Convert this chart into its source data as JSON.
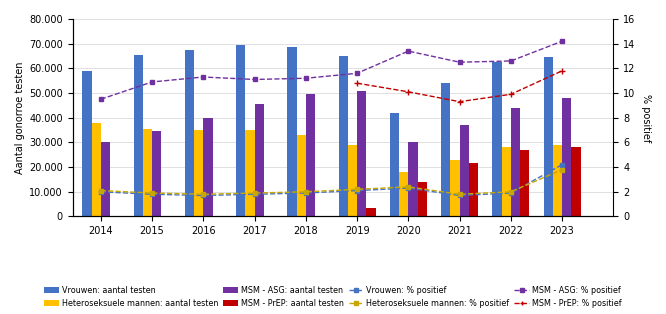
{
  "years": [
    2014,
    2015,
    2016,
    2017,
    2018,
    2019,
    2020,
    2021,
    2022,
    2023
  ],
  "vrouwen_testen": [
    59000,
    65500,
    67500,
    69500,
    68500,
    65000,
    42000,
    54000,
    62500,
    64500
  ],
  "het_mannen_testen": [
    38000,
    35500,
    35000,
    35000,
    33000,
    29000,
    18000,
    23000,
    28000,
    29000
  ],
  "msm_asg_testen": [
    30000,
    34500,
    40000,
    45500,
    49500,
    51000,
    30000,
    37000,
    44000,
    48000
  ],
  "msm_prep_testen": [
    0,
    0,
    0,
    0,
    0,
    3500,
    14000,
    21500,
    27000,
    28000
  ],
  "vrouwen_pct": [
    2.0,
    1.8,
    1.7,
    1.8,
    1.9,
    2.1,
    2.3,
    1.7,
    1.9,
    4.2
  ],
  "het_mannen_pct": [
    2.1,
    1.9,
    1.8,
    1.9,
    2.0,
    2.2,
    2.4,
    1.8,
    2.0,
    3.8
  ],
  "msm_asg_pct": [
    9.5,
    10.9,
    11.3,
    11.1,
    11.2,
    11.6,
    13.4,
    12.5,
    12.6,
    14.2
  ],
  "msm_prep_pct_x": [
    2019,
    2020,
    2021,
    2022,
    2023
  ],
  "msm_prep_pct_y": [
    10.8,
    10.1,
    9.3,
    9.9,
    11.8
  ],
  "bar_width": 0.18,
  "xlim": [
    2013.45,
    2024.0
  ],
  "ylim_left": [
    0,
    80000
  ],
  "ylim_right": [
    0,
    16
  ],
  "yticks_left": [
    0,
    10000,
    20000,
    30000,
    40000,
    50000,
    60000,
    70000,
    80000
  ],
  "yticks_right": [
    0,
    2,
    4,
    6,
    8,
    10,
    12,
    14,
    16
  ],
  "color_vrouwen_bar": "#4472C4",
  "color_het_bar": "#FFC000",
  "color_msm_asg_bar": "#7030A0",
  "color_msm_prep_bar": "#C00000",
  "color_vrouwen_line": "#4472C4",
  "color_het_line": "#C8A800",
  "color_msm_asg_line": "#7030A0",
  "color_msm_prep_line": "#C00000",
  "ylabel_left": "Aantal gonorroe testen",
  "ylabel_right": "% positief",
  "legend_bar": [
    "Vrouwen: aantal testen",
    "Heteroseksuele mannen: aantal testen",
    "MSM - ASG: aantal testen",
    "MSM - PrEP: aantal testen"
  ],
  "legend_line": [
    "Vrouwen: % positief",
    "Heteroseksuele mannen: % positief",
    "MSM - ASG: % positief",
    "MSM - PrEP: % positief"
  ],
  "figsize": [
    6.66,
    3.14
  ],
  "dpi": 100
}
